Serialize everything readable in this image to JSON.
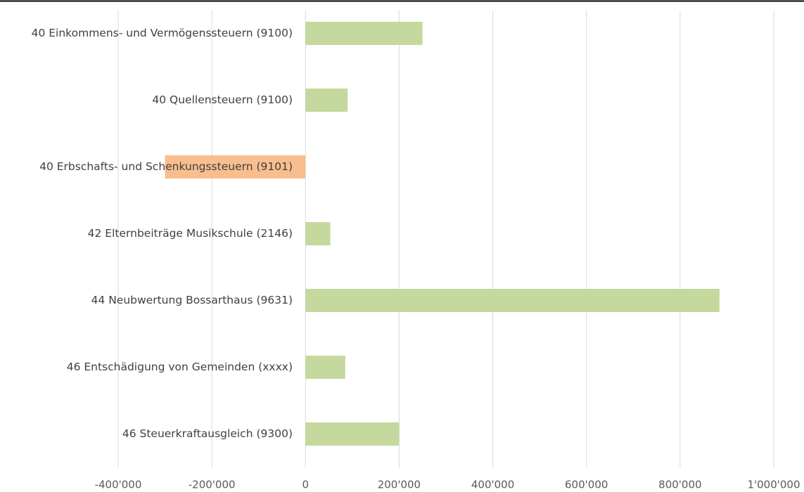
{
  "chart_data": {
    "type": "barh",
    "categories": [
      "40 Einkommens- und Vermögenssteuern (9100)",
      "40 Quellensteuern (9100)",
      "40 Erbschafts- und Schenkungssteuern (9101)",
      "42 Elternbeiträge Musikschule (2146)",
      "44 Neubwertung Bossarthaus (9631)",
      "46 Entschädigung von Gemeinden (xxxx)",
      "46 Steuerkraftausgleich (9300)"
    ],
    "values": [
      250000,
      90000,
      -300000,
      53000,
      884000,
      85000,
      200000
    ],
    "color": "#c5d89e",
    "negative_color": "#f8be8e",
    "xlim": [
      -400000,
      1000000
    ],
    "xticks": [
      {
        "value": -400000,
        "label": "-400'000"
      },
      {
        "value": -200000,
        "label": "-200'000"
      },
      0,
      {
        "value": 200000,
        "label": "200'000"
      },
      {
        "value": 400000,
        "label": "400'000"
      },
      {
        "value": 600000,
        "label": "600'000"
      },
      {
        "value": 800000,
        "label": "800'000"
      },
      {
        "value": 1000000,
        "label": "1'000'000"
      }
    ],
    "grid": true
  }
}
